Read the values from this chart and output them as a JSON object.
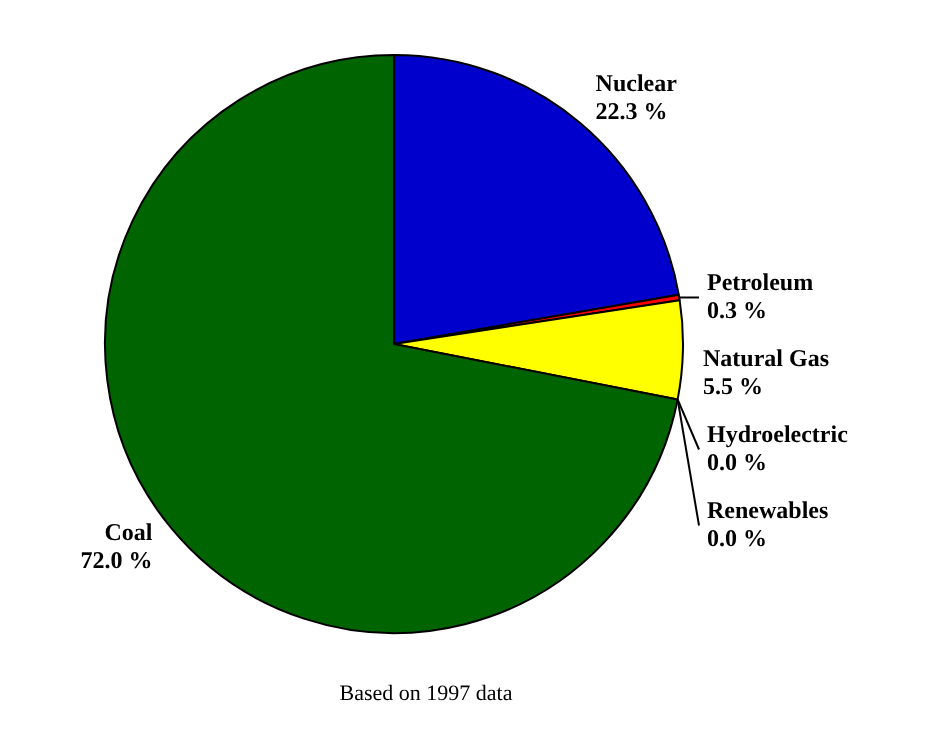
{
  "chart_data": {
    "type": "pie",
    "categories": [
      "Nuclear",
      "Petroleum",
      "Natural Gas",
      "Hydroelectric",
      "Renewables",
      "Coal"
    ],
    "values": [
      22.3,
      0.3,
      5.5,
      0.0,
      0.0,
      72.0
    ],
    "value_labels": [
      "22.3 %",
      "0.3 %",
      "5.5 %",
      "0.0 %",
      "0.0 %",
      "72.0 %"
    ],
    "colors": [
      "#0000cd",
      "#ff0000",
      "#ffff00",
      "#00ffff",
      "#ff00ff",
      "#006400"
    ],
    "annotations": [
      "Based on 1997 data"
    ]
  }
}
